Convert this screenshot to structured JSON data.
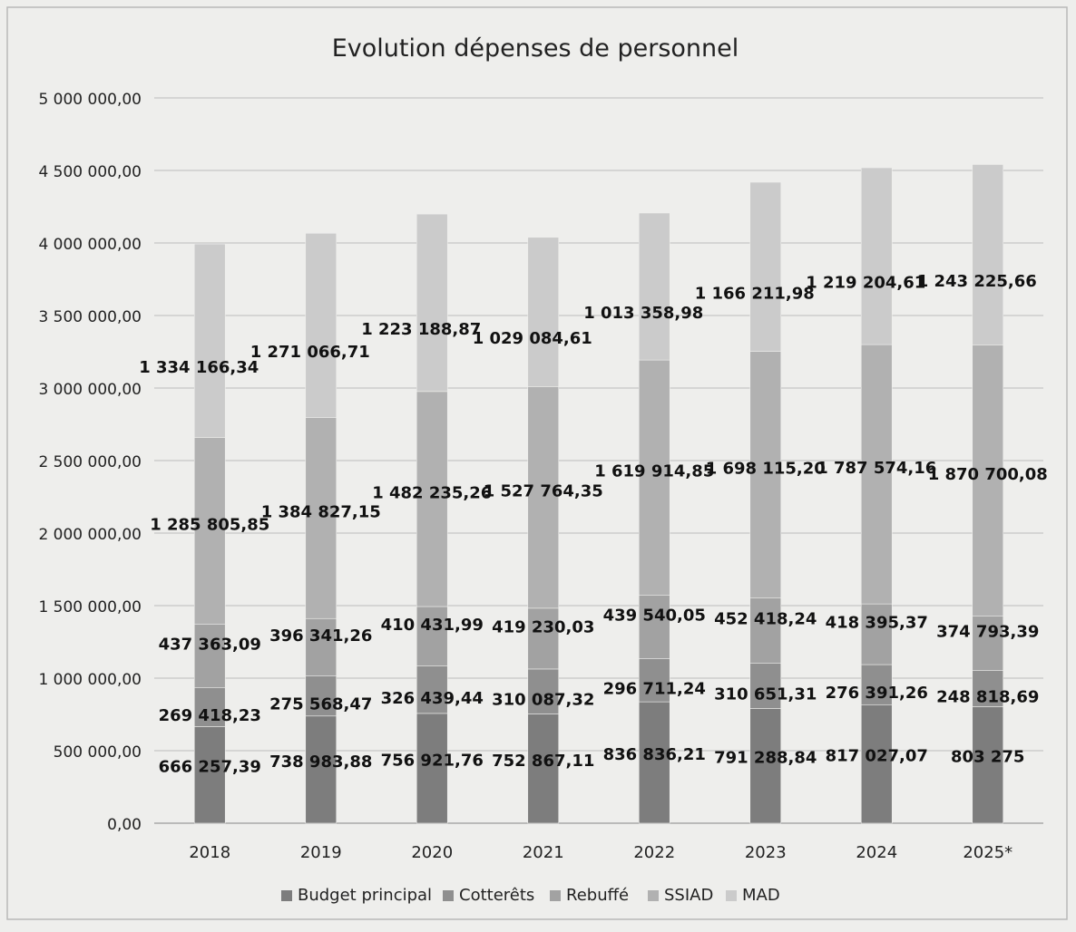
{
  "chart_data": {
    "type": "bar",
    "stacked": true,
    "title": "Evolution dépenses de personnel",
    "xlabel": "",
    "ylabel": "",
    "categories": [
      "2018",
      "2019",
      "2020",
      "2021",
      "2022",
      "2023",
      "2024",
      "2025*"
    ],
    "ylim": [
      0,
      5000000
    ],
    "yticks": [
      0,
      500000,
      1000000,
      1500000,
      2000000,
      2500000,
      3000000,
      3500000,
      4000000,
      4500000,
      5000000
    ],
    "ytick_labels": [
      "0,00",
      "500 000,00",
      "1 000 000,00",
      "1 500 000,00",
      "2 000 000,00",
      "2 500 000,00",
      "3 000 000,00",
      "3 500 000,00",
      "4 000 000,00",
      "4 500 000,00",
      "5 000 000,00"
    ],
    "grid": true,
    "legend_position": "bottom",
    "series": [
      {
        "name": "Budget principal",
        "color": "#7d7d7d",
        "values": [
          666257.39,
          738983.88,
          756921.76,
          752867.11,
          836836.21,
          791288.84,
          817027.07,
          803275
        ],
        "labels": [
          "666 257,39",
          "738 983,88",
          "756 921,76",
          "752 867,11",
          "836 836,21",
          "791 288,84",
          "817 027,07",
          "803 275"
        ]
      },
      {
        "name": "Cotterêts",
        "color": "#8f8f8f",
        "values": [
          269418.23,
          275568.47,
          326439.44,
          310087.32,
          296711.24,
          310651.31,
          276391.26,
          248818.69
        ],
        "labels": [
          "269 418,23",
          "275 568,47",
          "326 439,44",
          "310 087,32",
          "296 711,24",
          "310 651,31",
          "276 391,26",
          "248 818,69"
        ]
      },
      {
        "name": "Rebuffé",
        "color": "#a2a2a2",
        "values": [
          437363.09,
          396341.26,
          410431.99,
          419230.03,
          439540.05,
          452418.24,
          418395.37,
          374793.39
        ],
        "labels": [
          "437 363,09",
          "396 341,26",
          "410 431,99",
          "419 230,03",
          "439 540,05",
          "452 418,24",
          "418 395,37",
          "374 793,39"
        ]
      },
      {
        "name": "SSIAD",
        "color": "#b1b1b1",
        "values": [
          1285805.85,
          1384827.15,
          1482235.26,
          1527764.35,
          1619914.85,
          1698115.2,
          1787574.16,
          1870700.08
        ],
        "labels": [
          "1 285 805,85",
          "1 384 827,15",
          "1 482 235,26",
          "1 527 764,35",
          "1 619 914,85",
          "1 698 115,20",
          "1 787 574,16",
          "1 870 700,08"
        ]
      },
      {
        "name": "MAD",
        "color": "#cbcbcb",
        "values": [
          1334166.34,
          1271066.71,
          1223188.87,
          1029084.61,
          1013358.98,
          1166211.98,
          1219204.61,
          1243225.66
        ],
        "labels": [
          "1 334 166,34",
          "1 271 066,71",
          "1 223 188,87",
          "1 029 084,61",
          "1 013 358,98",
          "1 166 211,98",
          "1 219 204,61",
          "1 243 225,66"
        ]
      }
    ]
  }
}
